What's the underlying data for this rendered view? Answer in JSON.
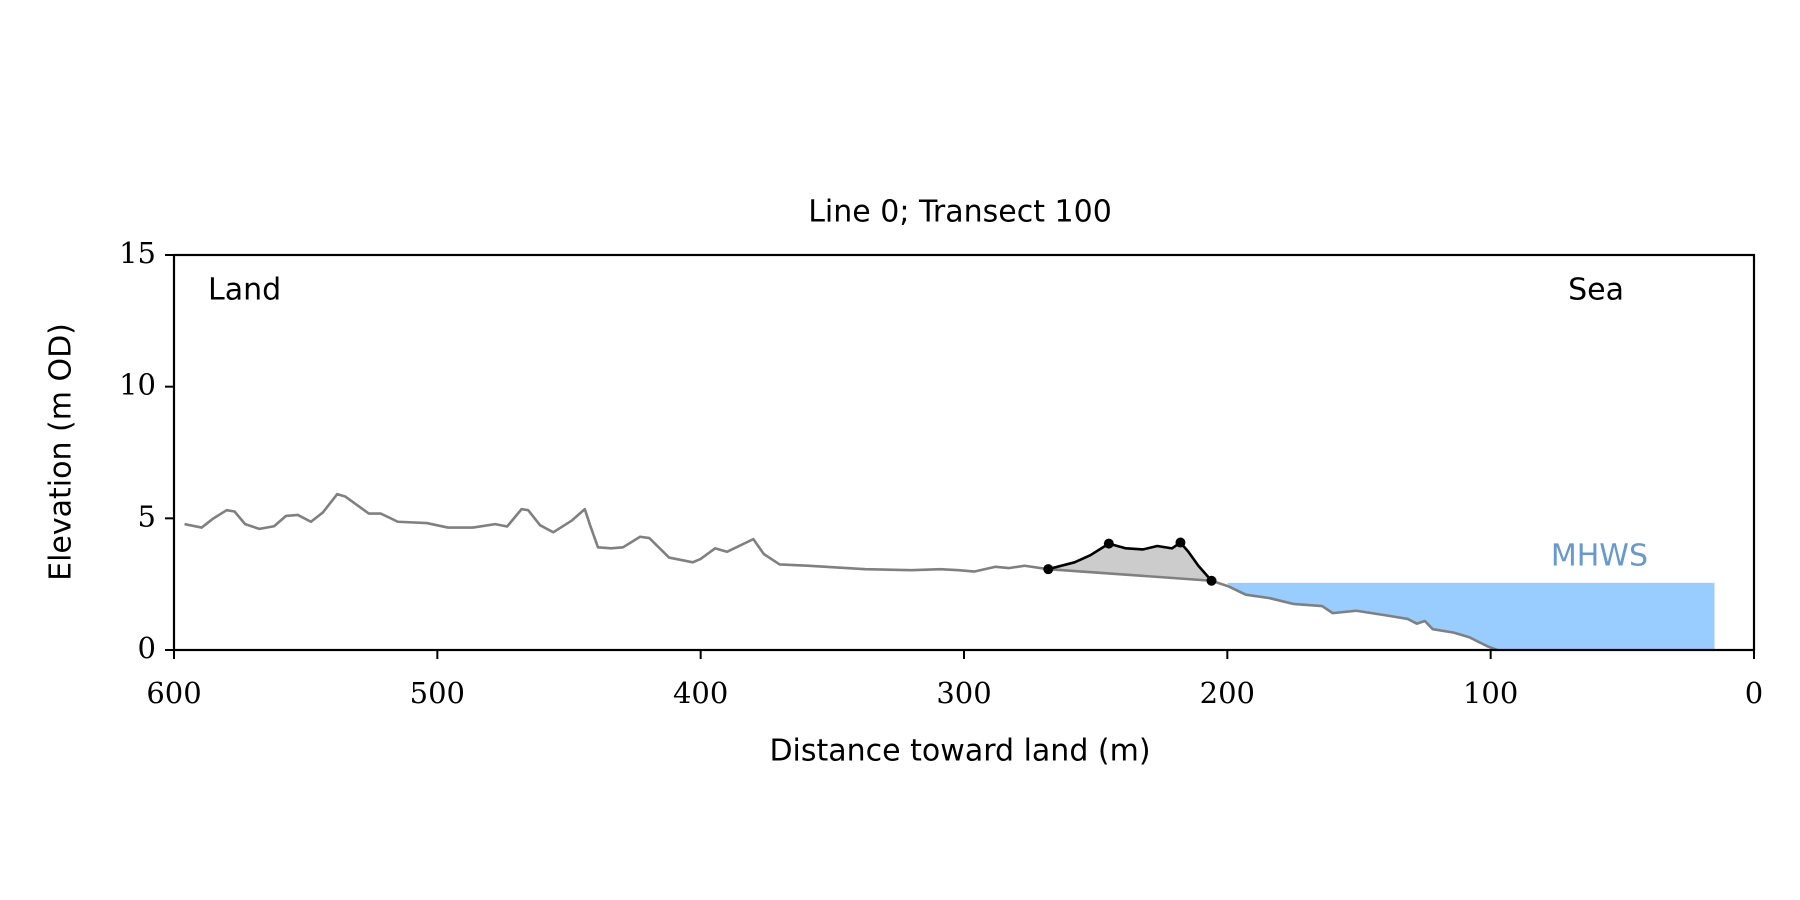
{
  "chart_data": {
    "type": "line",
    "title": "Line 0; Transect 100",
    "xlabel": "Distance toward land (m)",
    "ylabel": "Elevation (m OD)",
    "annotations": [
      "Land",
      "Sea"
    ],
    "xlim": [
      600,
      0
    ],
    "ylim": [
      0,
      15
    ],
    "xticks": [
      600,
      500,
      400,
      300,
      200,
      100,
      0
    ],
    "yticks": [
      0,
      5,
      10,
      15
    ],
    "series": [
      {
        "color": "#808080",
        "x": [
          596,
          589.5,
          585,
          580,
          577,
          573,
          567.6,
          562,
          557.5,
          553,
          548,
          543.5,
          538,
          535,
          526,
          521.5,
          515,
          504,
          496,
          486.5,
          478,
          473.5,
          468,
          465.5,
          461,
          456,
          449,
          444,
          442,
          439,
          434,
          429.5,
          423,
          419.5,
          412,
          403,
          400,
          394.5,
          390,
          380,
          376,
          370,
          359.5,
          337.5,
          320,
          309,
          302,
          296,
          288,
          283,
          277,
          268,
          206,
          199.4,
          193,
          184,
          175,
          164,
          160,
          151,
          140,
          131.5,
          128,
          125,
          122,
          114,
          108,
          101,
          97.5
        ],
        "values": [
          4.78,
          4.65,
          5.0,
          5.31,
          5.26,
          4.78,
          4.6,
          4.7,
          5.09,
          5.13,
          4.87,
          5.22,
          5.92,
          5.83,
          5.18,
          5.18,
          4.87,
          4.82,
          4.65,
          4.65,
          4.78,
          4.69,
          5.35,
          5.31,
          4.74,
          4.47,
          4.91,
          5.35,
          4.74,
          3.9,
          3.86,
          3.9,
          4.3,
          4.25,
          3.51,
          3.33,
          3.46,
          3.86,
          3.73,
          4.21,
          3.64,
          3.25,
          3.2,
          3.07,
          3.03,
          3.07,
          3.03,
          2.98,
          3.16,
          3.11,
          3.2,
          3.07,
          2.63,
          2.41,
          2.1,
          1.97,
          1.75,
          1.67,
          1.4,
          1.49,
          1.32,
          1.18,
          1.0,
          1.1,
          0.79,
          0.66,
          0.48,
          0.13,
          0
        ]
      },
      {
        "color": "#000000",
        "fill": "#cccccc",
        "x": [
          268,
          258,
          252,
          245,
          238.5,
          232,
          226.6,
          221,
          217.8,
          214.8,
          211,
          206
        ],
        "values": [
          3.07,
          3.33,
          3.6,
          4.04,
          3.86,
          3.82,
          3.95,
          3.86,
          4.08,
          3.73,
          3.2,
          2.63
        ],
        "markers": [
          0,
          3,
          8,
          11
        ]
      }
    ],
    "mhws": {
      "label": "MHWS",
      "value": 2.55,
      "x": [
        200,
        15
      ],
      "color": "#99ccff",
      "label_color": "#6699cc"
    }
  }
}
